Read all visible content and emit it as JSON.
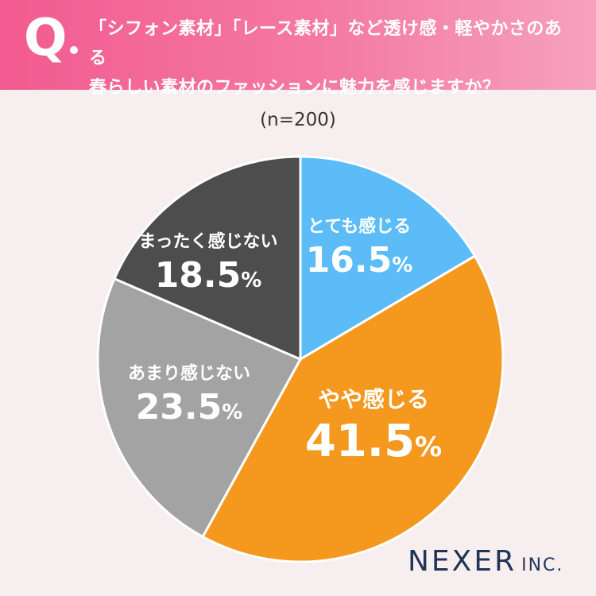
{
  "header": {
    "q_mark": "Q",
    "question_line1": "「シフォン素材」「レース素材」など透け感・軽やかさのある",
    "question_line2": "春らしい素材のファッションに魅力を感じますか？"
  },
  "sample_size": "(n=200)",
  "colors": {
    "header": "#f25b8f",
    "background": "#f7eef0",
    "very": "#5bbcf8",
    "somewhat": "#f5981e",
    "not_much": "#a3a3a3",
    "not_at_all": "#4d4d4d",
    "logo": "#1f3556"
  },
  "chart_data": {
    "type": "pie",
    "title": "「シフォン素材」「レース素材」など透け感・軽やかさのある春らしい素材のファッションに魅力を感じますか？",
    "subtitle": "(n=200)",
    "unit": "%",
    "slices": [
      {
        "label": "とても感じる",
        "value": 16.5,
        "display": "16.5",
        "color": "#5bbcf8"
      },
      {
        "label": "やや感じる",
        "value": 41.5,
        "display": "41.5",
        "color": "#f5981e"
      },
      {
        "label": "あまり感じない",
        "value": 23.5,
        "display": "23.5",
        "color": "#a3a3a3"
      },
      {
        "label": "まったく感じない",
        "value": 18.5,
        "display": "18.5",
        "color": "#4d4d4d"
      }
    ]
  },
  "logo": {
    "main": "NEXER",
    "sub": "INC."
  }
}
